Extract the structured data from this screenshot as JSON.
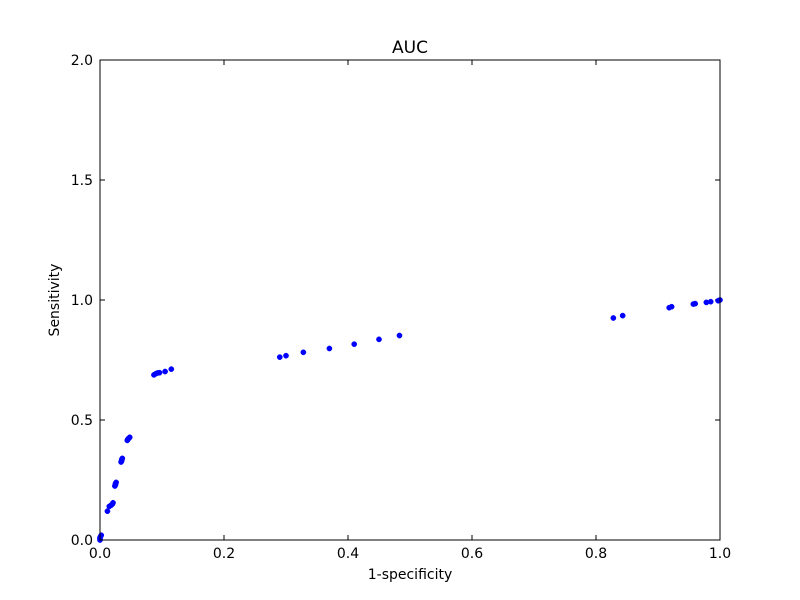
{
  "chart_data": {
    "type": "scatter",
    "title": "AUC",
    "xlabel": "1-specificity",
    "ylabel": "Sensitivity",
    "xlim": [
      0.0,
      1.0
    ],
    "ylim": [
      0.0,
      2.0
    ],
    "xticks": [
      "0.0",
      "0.2",
      "0.4",
      "0.6",
      "0.8",
      "1.0"
    ],
    "yticks": [
      "0.0",
      "0.5",
      "1.0",
      "1.5",
      "2.0"
    ],
    "grid": false,
    "legend": "none",
    "marker_color": "#0000ff",
    "series": [
      {
        "points": [
          [
            0.0,
            0.0
          ],
          [
            0.0,
            0.005
          ],
          [
            0.0,
            0.01
          ],
          [
            0.001,
            0.015
          ],
          [
            0.002,
            0.02
          ],
          [
            0.012,
            0.12
          ],
          [
            0.015,
            0.14
          ],
          [
            0.018,
            0.145
          ],
          [
            0.02,
            0.15
          ],
          [
            0.021,
            0.155
          ],
          [
            0.024,
            0.225
          ],
          [
            0.025,
            0.23
          ],
          [
            0.025,
            0.235
          ],
          [
            0.026,
            0.24
          ],
          [
            0.034,
            0.325
          ],
          [
            0.035,
            0.33
          ],
          [
            0.035,
            0.335
          ],
          [
            0.036,
            0.34
          ],
          [
            0.044,
            0.415
          ],
          [
            0.045,
            0.42
          ],
          [
            0.046,
            0.423
          ],
          [
            0.047,
            0.425
          ],
          [
            0.048,
            0.428
          ],
          [
            0.087,
            0.688
          ],
          [
            0.09,
            0.693
          ],
          [
            0.093,
            0.696
          ],
          [
            0.096,
            0.697
          ],
          [
            0.105,
            0.702
          ],
          [
            0.115,
            0.712
          ],
          [
            0.29,
            0.762
          ],
          [
            0.3,
            0.768
          ],
          [
            0.328,
            0.782
          ],
          [
            0.37,
            0.798
          ],
          [
            0.41,
            0.816
          ],
          [
            0.45,
            0.836
          ],
          [
            0.483,
            0.852
          ],
          [
            0.828,
            0.925
          ],
          [
            0.843,
            0.935
          ],
          [
            0.918,
            0.968
          ],
          [
            0.922,
            0.972
          ],
          [
            0.957,
            0.983
          ],
          [
            0.96,
            0.985
          ],
          [
            0.978,
            0.99
          ],
          [
            0.985,
            0.993
          ],
          [
            0.997,
            0.997
          ],
          [
            1.0,
            1.0
          ]
        ]
      }
    ]
  }
}
